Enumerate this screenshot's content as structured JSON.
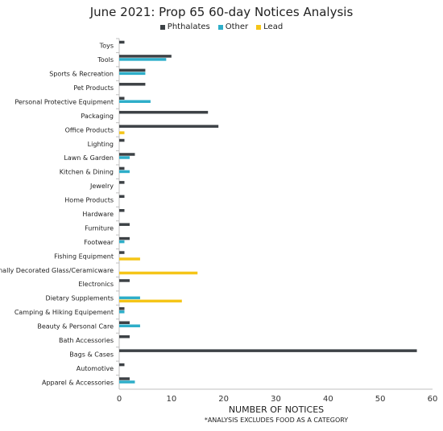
{
  "chart_data": {
    "type": "bar",
    "orientation": "horizontal",
    "title": "June 2021: Prop 65 60-day Notices Analysis",
    "xlabel": "NUMBER OF NOTICES",
    "note": "*ANALYSIS EXCLUDES FOOD AS A CATEGORY",
    "xlim": [
      0,
      60
    ],
    "xticks": [
      0,
      10,
      20,
      30,
      40,
      50,
      60
    ],
    "legend_position": "top-center",
    "grid": false,
    "categories": [
      "Toys",
      "Tools",
      "Sports & Recreation",
      "Pet Products",
      "Personal Protective Equipment",
      "Packaging",
      "Office Products",
      "Lighting",
      "Lawn & Garden",
      "Kitchen & Dining",
      "Jewelry",
      "Home Products",
      "Hardware",
      "Furniture",
      "Footwear",
      "Fishing Equipment",
      "Externally Decorated Glass/Ceramicware",
      "Electronics",
      "Dietary Supplements",
      "Camping & Hiking Equipement",
      "Beauty & Personal Care",
      "Bath Accessories",
      "Bags & Cases",
      "Automotive",
      "Apparel & Accessories"
    ],
    "series": [
      {
        "name": "Phthalates",
        "color": "#3d4246",
        "values": [
          1,
          10,
          5,
          5,
          1,
          17,
          19,
          1,
          3,
          1,
          1,
          1,
          1,
          2,
          2,
          1,
          0,
          2,
          0,
          1,
          2,
          2,
          57,
          1,
          2
        ]
      },
      {
        "name": "Other",
        "color": "#2eaec9",
        "values": [
          0,
          9,
          5,
          0,
          6,
          0,
          0,
          0,
          2,
          2,
          0,
          0,
          0,
          0,
          1,
          0,
          0,
          0,
          4,
          1,
          4,
          0,
          0,
          0,
          3
        ]
      },
      {
        "name": "Lead",
        "color": "#f5c518",
        "values": [
          0,
          0,
          0,
          0,
          0,
          0,
          1,
          0,
          0,
          0,
          0,
          0,
          0,
          0,
          0,
          4,
          15,
          0,
          12,
          0,
          0,
          0,
          0,
          0,
          0
        ]
      }
    ]
  }
}
